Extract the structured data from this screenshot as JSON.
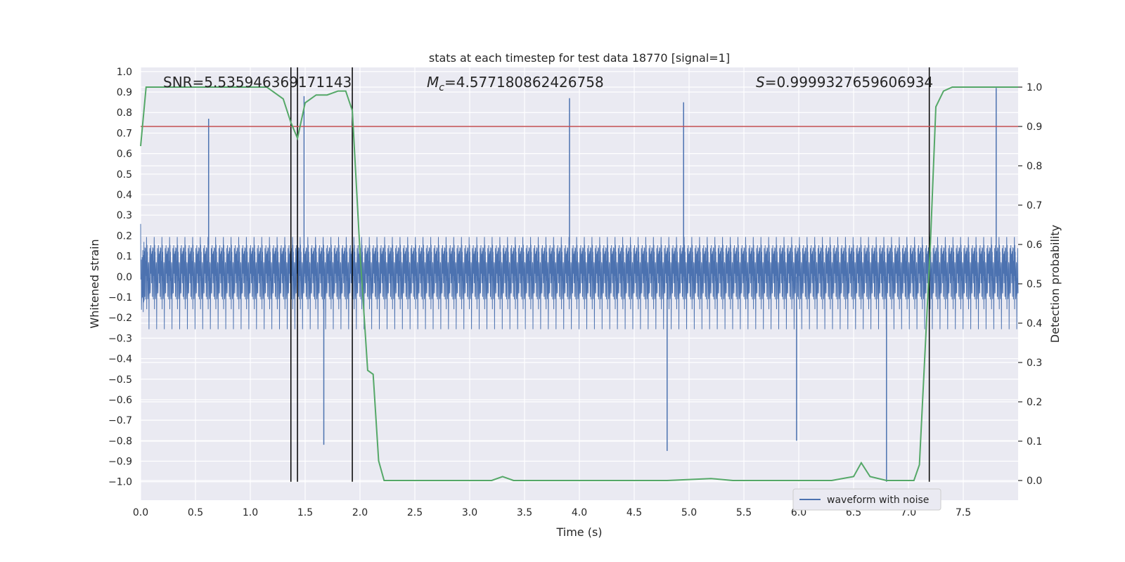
{
  "chart_data": {
    "type": "line",
    "title": "stats at each timestep for test data 18770 [signal=1]",
    "xlabel": "Time (s)",
    "ylabel": "Whitened strain",
    "y2label": "Detection probability",
    "xlim": [
      0.0,
      8.0
    ],
    "ylim": [
      -1.09,
      1.02
    ],
    "y2lim": [
      -0.05,
      1.05
    ],
    "xticks": [
      0.0,
      0.5,
      1.0,
      1.5,
      2.0,
      2.5,
      3.0,
      3.5,
      4.0,
      4.5,
      5.0,
      5.5,
      6.0,
      6.5,
      7.0,
      7.5
    ],
    "xtick_labels": [
      "0.0",
      "0.5",
      "1.0",
      "1.5",
      "2.0",
      "2.5",
      "3.0",
      "3.5",
      "4.0",
      "4.5",
      "5.0",
      "5.5",
      "6.0",
      "6.5",
      "7.0",
      "7.5"
    ],
    "yticks": [
      1.0,
      0.9,
      0.8,
      0.7,
      0.6,
      0.5,
      0.4,
      0.3,
      0.2,
      0.1,
      0.0,
      -0.1,
      -0.2,
      -0.3,
      -0.4,
      -0.5,
      -0.6,
      -0.7,
      -0.8,
      -0.9,
      -1.0
    ],
    "ytick_labels": [
      "1.0",
      "0.9",
      "0.8",
      "0.7",
      "0.6",
      "0.5",
      "0.4",
      "0.3",
      "0.2",
      "0.1",
      "0.0",
      "−0.1",
      "−0.2",
      "−0.3",
      "−0.4",
      "−0.5",
      "−0.6",
      "−0.7",
      "−0.8",
      "−0.9",
      "−1.0"
    ],
    "y2ticks": [
      1.0,
      0.9,
      0.8,
      0.7,
      0.6,
      0.5,
      0.4,
      0.3,
      0.2,
      0.1,
      0.0
    ],
    "y2tick_labels": [
      "1.0",
      "0.9",
      "0.8",
      "0.7",
      "0.6",
      "0.5",
      "0.4",
      "0.3",
      "0.2",
      "0.1",
      "0.0"
    ],
    "grid": true,
    "legend": {
      "position": "bottom-right",
      "entries": [
        "waveform with noise"
      ]
    },
    "annotations": [
      {
        "text": "SNR=5.535946369171143"
      },
      {
        "text": "M_c=4.577180862426758"
      },
      {
        "text": "S=0.9999327659606934"
      }
    ],
    "threshold": {
      "axis": "right",
      "value": 0.9,
      "color": "#c44e52"
    },
    "vlines": [
      1.37,
      1.43,
      1.93,
      7.19
    ],
    "series": [
      {
        "name": "waveform with noise",
        "axis": "left",
        "color": "#4c72b0",
        "style": "dense noise, approx. 8000 samples",
        "typical_envelope": [
          -0.45,
          0.5
        ],
        "peaks": [
          {
            "x": 3.91,
            "y": 0.87
          },
          {
            "x": 4.95,
            "y": 0.85
          },
          {
            "x": 1.49,
            "y": 0.88
          },
          {
            "x": 7.8,
            "y": 0.92
          },
          {
            "x": 0.62,
            "y": 0.77
          },
          {
            "x": 6.8,
            "y": -1.0
          },
          {
            "x": 4.8,
            "y": -0.85
          },
          {
            "x": 1.67,
            "y": -0.82
          },
          {
            "x": 5.98,
            "y": -0.8
          }
        ]
      },
      {
        "name": "",
        "axis": "right",
        "color": "#55a868",
        "x": [
          0.0,
          0.05,
          0.2,
          0.5,
          0.8,
          1.0,
          1.15,
          1.2,
          1.3,
          1.37,
          1.43,
          1.5,
          1.6,
          1.7,
          1.8,
          1.87,
          1.93,
          2.0,
          2.07,
          2.12,
          2.17,
          2.22,
          2.3,
          2.5,
          3.0,
          3.2,
          3.3,
          3.4,
          3.6,
          3.9,
          4.2,
          4.8,
          5.2,
          5.4,
          5.8,
          6.3,
          6.5,
          6.57,
          6.65,
          6.8,
          6.95,
          7.05,
          7.1,
          7.2,
          7.25,
          7.32,
          7.4,
          7.6,
          7.8,
          8.0
        ],
        "y": [
          0.85,
          1.0,
          1.0,
          1.0,
          1.0,
          1.0,
          1.0,
          0.99,
          0.97,
          0.91,
          0.87,
          0.96,
          0.98,
          0.98,
          0.99,
          0.99,
          0.94,
          0.58,
          0.28,
          0.27,
          0.05,
          0.0,
          0.0,
          0.0,
          0.0,
          0.0,
          0.01,
          0.0,
          0.0,
          0.0,
          0.0,
          0.0,
          0.005,
          0.0,
          0.0,
          0.0,
          0.01,
          0.045,
          0.01,
          0.0,
          0.0,
          0.0,
          0.04,
          0.6,
          0.95,
          0.99,
          1.0,
          1.0,
          1.0,
          1.0
        ]
      }
    ]
  }
}
